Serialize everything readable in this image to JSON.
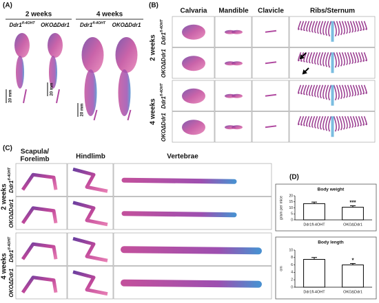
{
  "panel_a": {
    "label": "(A)",
    "groups": [
      {
        "title": "2 weeks",
        "columns": [
          {
            "name": "Ddr1",
            "sup": "fl-4OHT"
          },
          {
            "name": "OKOΔDdr1"
          }
        ]
      },
      {
        "title": "4 weeks",
        "columns": [
          {
            "name": "Ddr1",
            "sup": "fl-4OHT"
          },
          {
            "name": "OKOΔDdr1"
          }
        ]
      }
    ],
    "scale_labels": [
      "20 mm",
      "20 mm",
      "20 mm"
    ]
  },
  "panel_b": {
    "label": "(B)",
    "columns": [
      "Calvaria",
      "Mandible",
      "Clavicle",
      "Ribs/Sternum"
    ],
    "groups": [
      {
        "title": "2 weeks",
        "rows": [
          {
            "name": "Ddr1",
            "sup": "fl-4OHT"
          },
          {
            "name": "OKOΔDdr1"
          }
        ]
      },
      {
        "title": "4 weeks",
        "rows": [
          {
            "name": "Ddr1",
            "sup": "fl-4OHT"
          },
          {
            "name": "OKOΔDdr1"
          }
        ]
      }
    ]
  },
  "panel_c": {
    "label": "(C)",
    "columns": [
      [
        "Scapula/",
        "Forelimb"
      ],
      [
        "Hindlimb"
      ],
      [
        "Vertebrae"
      ]
    ],
    "groups": [
      {
        "title": "2 weeks",
        "rows": [
          {
            "name": "Ddr1",
            "sup": "fl-4OHT"
          },
          {
            "name": "OKOΔDdr1"
          }
        ]
      },
      {
        "title": "4 weeks",
        "rows": [
          {
            "name": "Ddr1",
            "sup": "fl-4OHT"
          },
          {
            "name": "OKOΔDdr1"
          }
        ]
      }
    ]
  },
  "panel_d": {
    "label": "(D)"
  },
  "chart_data": [
    {
      "type": "bar",
      "title": "Body weight",
      "y_label": "gram per mice",
      "categories": [
        "Ddr1fl-4OHT",
        "OKOΔDdr1"
      ],
      "values": [
        13.5,
        10.5
      ],
      "errors": [
        1.3,
        1.2
      ],
      "annotation": "***",
      "color": "#ffffff",
      "ylim": [
        0,
        20
      ],
      "yticks": [
        0,
        5,
        10,
        15,
        20
      ]
    },
    {
      "type": "bar",
      "title": "Body length",
      "y_label": "cm",
      "categories": [
        "Ddr1fl-4OHT",
        "OKOΔDdr1"
      ],
      "values": [
        7.5,
        6.0
      ],
      "errors": [
        0.5,
        0.4
      ],
      "annotation": "*",
      "color": "#ffffff",
      "ylim": [
        0,
        10
      ],
      "yticks": [
        0,
        2,
        4,
        6,
        8,
        10
      ]
    }
  ]
}
